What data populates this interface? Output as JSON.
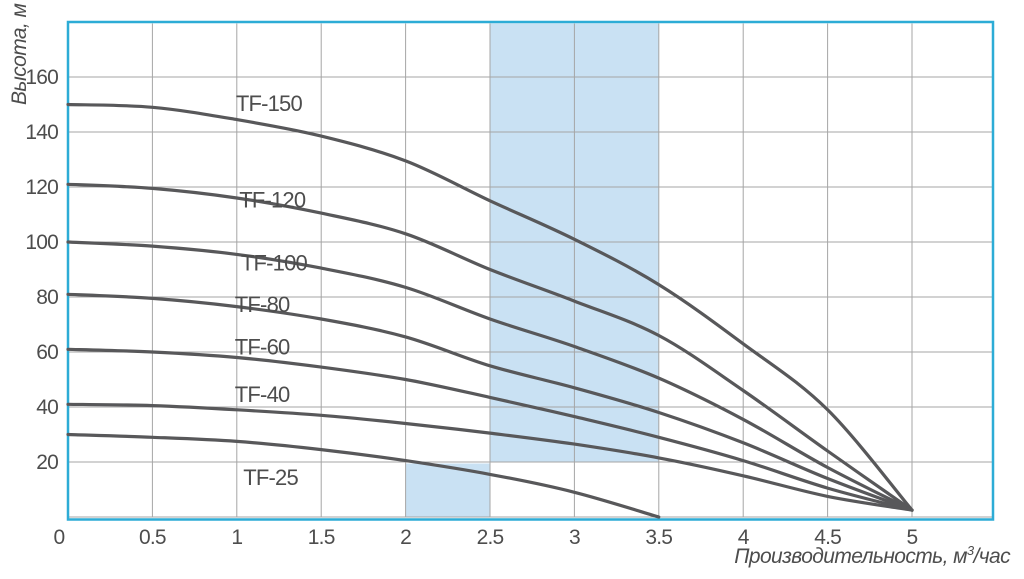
{
  "page": {
    "background": "#ffffff"
  },
  "chart_data": {
    "type": "line",
    "title": "",
    "ylabel": "Высота, м",
    "xlabel": {
      "text": "Производительность, м",
      "sup": "3",
      "suffix": "/час"
    },
    "xlim": [
      0,
      5.48
    ],
    "ylim": [
      0,
      180
    ],
    "grid": true,
    "legend": "labels-on-curves",
    "x_ticks": [
      {
        "value": 0,
        "label": "0"
      },
      {
        "value": 0.5,
        "label": "0.5"
      },
      {
        "value": 1,
        "label": "1"
      },
      {
        "value": 1.5,
        "label": "1.5"
      },
      {
        "value": 2,
        "label": "2"
      },
      {
        "value": 2.5,
        "label": "2.5"
      },
      {
        "value": 3,
        "label": "3"
      },
      {
        "value": 3.5,
        "label": "3.5"
      },
      {
        "value": 4,
        "label": "4"
      },
      {
        "value": 4.5,
        "label": "4.5"
      },
      {
        "value": 5,
        "label": "5"
      }
    ],
    "y_ticks": [
      {
        "value": 20,
        "label": "20"
      },
      {
        "value": 40,
        "label": "40"
      },
      {
        "value": 60,
        "label": "60"
      },
      {
        "value": 80,
        "label": "80"
      },
      {
        "value": 100,
        "label": "100"
      },
      {
        "value": 120,
        "label": "120"
      },
      {
        "value": 140,
        "label": "140"
      },
      {
        "value": 160,
        "label": "160"
      }
    ],
    "highlight_bands": [
      {
        "x1": 2.5,
        "x2": 3.5,
        "y1": 20,
        "y2": 180
      },
      {
        "x1": 2.0,
        "x2": 2.5,
        "y1": 0,
        "y2": 20
      }
    ],
    "series": [
      {
        "name": "TF-150",
        "label_pos": {
          "x": 1.19,
          "y": 150.5
        },
        "points": [
          [
            0,
            150
          ],
          [
            0.5,
            149
          ],
          [
            1,
            144.5
          ],
          [
            1.5,
            138.5
          ],
          [
            2,
            129.5
          ],
          [
            2.5,
            115
          ],
          [
            3,
            101
          ],
          [
            3.5,
            84.5
          ],
          [
            4,
            63
          ],
          [
            4.5,
            39
          ],
          [
            5,
            2.5
          ]
        ]
      },
      {
        "name": "TF-120",
        "label_pos": {
          "x": 1.21,
          "y": 115.5
        },
        "points": [
          [
            0,
            121
          ],
          [
            0.5,
            119.5
          ],
          [
            1,
            116
          ],
          [
            1.5,
            110.5
          ],
          [
            2,
            103
          ],
          [
            2.5,
            90
          ],
          [
            3,
            78.5
          ],
          [
            3.5,
            66
          ],
          [
            4,
            46
          ],
          [
            4.5,
            24
          ],
          [
            5,
            2.5
          ]
        ]
      },
      {
        "name": "TF-100",
        "label_pos": {
          "x": 1.22,
          "y": 92.5
        },
        "points": [
          [
            0,
            100
          ],
          [
            0.5,
            98.5
          ],
          [
            1,
            95.5
          ],
          [
            1.5,
            90.5
          ],
          [
            2,
            83.5
          ],
          [
            2.5,
            72
          ],
          [
            3,
            62
          ],
          [
            3.5,
            50.5
          ],
          [
            4,
            35.5
          ],
          [
            4.5,
            18
          ],
          [
            5,
            2.5
          ]
        ]
      },
      {
        "name": "TF-80",
        "label_pos": {
          "x": 1.15,
          "y": 77.5
        },
        "points": [
          [
            0,
            81
          ],
          [
            0.5,
            79.5
          ],
          [
            1,
            76.5
          ],
          [
            1.5,
            72
          ],
          [
            2,
            65.5
          ],
          [
            2.5,
            55
          ],
          [
            3,
            47
          ],
          [
            3.5,
            38
          ],
          [
            4,
            27
          ],
          [
            4.5,
            14
          ],
          [
            5,
            2.5
          ]
        ]
      },
      {
        "name": "TF-60",
        "label_pos": {
          "x": 1.15,
          "y": 62
        },
        "points": [
          [
            0,
            61
          ],
          [
            0.5,
            60
          ],
          [
            1,
            58
          ],
          [
            1.5,
            54.5
          ],
          [
            2,
            50
          ],
          [
            2.5,
            43.5
          ],
          [
            3,
            36.5
          ],
          [
            3.5,
            29
          ],
          [
            4,
            20.5
          ],
          [
            4.5,
            10.5
          ],
          [
            5,
            2.5
          ]
        ]
      },
      {
        "name": "TF-40",
        "label_pos": {
          "x": 1.15,
          "y": 44.8
        },
        "points": [
          [
            0,
            41
          ],
          [
            0.5,
            40.5
          ],
          [
            1,
            39
          ],
          [
            1.5,
            37
          ],
          [
            2,
            34
          ],
          [
            2.5,
            30.5
          ],
          [
            3,
            26.5
          ],
          [
            3.5,
            21.5
          ],
          [
            4,
            15
          ],
          [
            4.5,
            7.5
          ],
          [
            5,
            2.5
          ]
        ]
      },
      {
        "name": "TF-25",
        "label_pos": {
          "x": 1.2,
          "y": 14.5
        },
        "points": [
          [
            0,
            30
          ],
          [
            0.5,
            29
          ],
          [
            1,
            27.5
          ],
          [
            1.5,
            24.5
          ],
          [
            2,
            20.5
          ],
          [
            2.5,
            15.5
          ],
          [
            3,
            9
          ],
          [
            3.5,
            0
          ]
        ]
      }
    ],
    "colors": {
      "plot_border": "#2dacd6",
      "grid": "#a5a5a5",
      "curve": "#58585a",
      "band": "#c9e1f3",
      "text": "#4d4d4d"
    }
  }
}
